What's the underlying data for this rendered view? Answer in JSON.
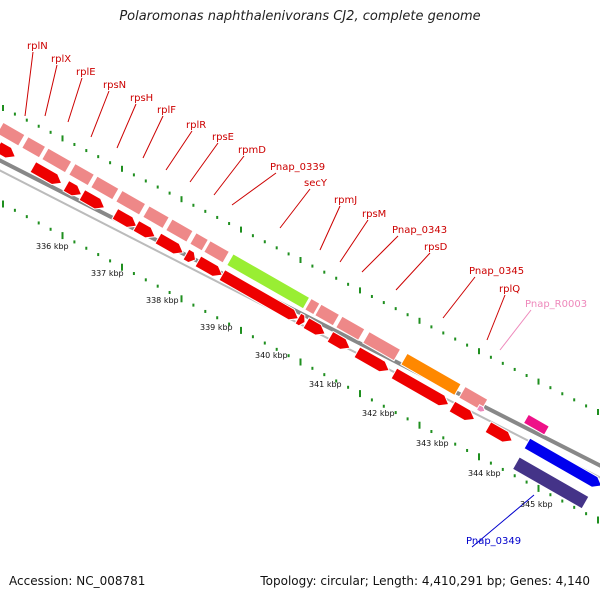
{
  "title": "Polaromonas naphthalenivorans CJ2, complete genome",
  "footer": {
    "accession": "Accession: NC_008781",
    "topology": "Topology: circular; Length: 4,410,291 bp; Genes: 4,140"
  },
  "colors": {
    "background": "#ffffff",
    "backbone": "#888888",
    "tick": "#1f8f1f",
    "ribosomal_gene": "#ee8888",
    "cds": "#ee0000",
    "secY": "#99ee33",
    "rpsD_region": "#ff8800",
    "rna_gene": "#ee1188",
    "blue_cds": "#0000ee",
    "dark_blue_region": "#443388",
    "label_red": "#cc0000",
    "label_pink": "#ee88bb",
    "label_blue": "#0000cc",
    "kbp_label": "#111111"
  },
  "kbp_labels": [
    "336 kbp",
    "337 kbp",
    "338 kbp",
    "339 kbp",
    "340 kbp",
    "341 kbp",
    "342 kbp",
    "343 kbp",
    "344 kbp",
    "345 kbp"
  ],
  "gene_labels": [
    {
      "text": "rplN",
      "color": "#cc0000"
    },
    {
      "text": "rplX",
      "color": "#cc0000"
    },
    {
      "text": "rplE",
      "color": "#cc0000"
    },
    {
      "text": "rpsN",
      "color": "#cc0000"
    },
    {
      "text": "rpsH",
      "color": "#cc0000"
    },
    {
      "text": "rplF",
      "color": "#cc0000"
    },
    {
      "text": "rplR",
      "color": "#cc0000"
    },
    {
      "text": "rpsE",
      "color": "#cc0000"
    },
    {
      "text": "rpmD",
      "color": "#cc0000"
    },
    {
      "text": "Pnap_0339",
      "color": "#cc0000"
    },
    {
      "text": "secY",
      "color": "#cc0000"
    },
    {
      "text": "rpmJ",
      "color": "#cc0000"
    },
    {
      "text": "rpsM",
      "color": "#cc0000"
    },
    {
      "text": "Pnap_0343",
      "color": "#cc0000"
    },
    {
      "text": "rpsD",
      "color": "#cc0000"
    },
    {
      "text": "Pnap_0345",
      "color": "#cc0000"
    },
    {
      "text": "rplQ",
      "color": "#cc0000"
    },
    {
      "text": "Pnap_R0003",
      "color": "#ee88bb"
    },
    {
      "text": "Pnap_0349",
      "color": "#0000cc"
    }
  ]
}
